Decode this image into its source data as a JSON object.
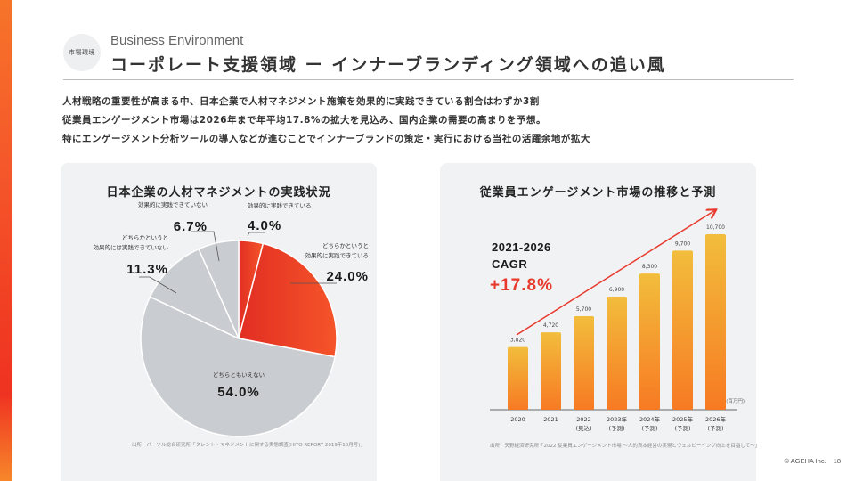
{
  "header": {
    "badge": "市場環境",
    "eyebrow": "Business Environment",
    "title": "コーポレート支援領域 ー インナーブランディング領域への追い風"
  },
  "intro_lines": [
    "人材戦略の重要性が高まる中、日本企業で人材マネジメント施策を効果的に実践できている割合はわずか3割",
    "従業員エンゲージメント市場は2026年まで年平均17.8%の拡大を見込み、国内企業の需要の高まりを予想。",
    "特にエンゲージメント分析ツールの導入などが進むことでインナーブランドの策定・実行における当社の活躍余地が拡大"
  ],
  "colors": {
    "accent_red": "#ee3a24",
    "accent_orange": "#f6742a",
    "bar_top": "#f2bd3c",
    "bar_bottom": "#f77a23",
    "pie_gray": "#c9ccd0",
    "cagr_red": "#e8392d"
  },
  "footer": {
    "copyright": "© AGEHA Inc.",
    "page_number": "18"
  },
  "chart_data": [
    {
      "type": "pie",
      "title": "日本企業の人材マネジメントの実践状況",
      "slices": [
        {
          "label": "効果的に実践できている",
          "value": 4.0,
          "display": "4.0%",
          "highlight": true
        },
        {
          "label": "どちらかというと 効果的に実践できている",
          "label_lines": [
            "どちらかというと",
            "効果的に実践できている"
          ],
          "value": 24.0,
          "display": "24.0%",
          "highlight": true
        },
        {
          "label": "どちらともいえない",
          "value": 54.0,
          "display": "54.0%",
          "highlight": false
        },
        {
          "label": "どちらかというと 効果的には実践できていない",
          "label_lines": [
            "どちらかというと",
            "効果的には実践できていない"
          ],
          "value": 11.3,
          "display": "11.3%",
          "highlight": false
        },
        {
          "label": "効果的に実践できていない",
          "value": 6.7,
          "display": "6.7%",
          "highlight": false
        }
      ],
      "start_angle": "12 o'clock, clockwise",
      "source": "出所：パーソル総合研究所「タレント・マネジメントに関する実態調査(HITO REPORT 2019年10月号)」"
    },
    {
      "type": "bar",
      "title": "従業員エンゲージメント市場の推移と予測",
      "categories": [
        "2020",
        "2021",
        "2022\n(見込)",
        "2023年\n(予測)",
        "2024年\n(予測)",
        "2025年\n(予測)",
        "2026年\n(予測)"
      ],
      "category_lines": [
        [
          "2020"
        ],
        [
          "2021"
        ],
        [
          "2022",
          "(見込)"
        ],
        [
          "2023年",
          "(予測)"
        ],
        [
          "2024年",
          "(予測)"
        ],
        [
          "2025年",
          "(予測)"
        ],
        [
          "2026年",
          "(予測)"
        ]
      ],
      "values": [
        3820,
        4720,
        5700,
        6900,
        8300,
        9700,
        10700
      ],
      "value_labels": [
        "3,820",
        "4,720",
        "5,700",
        "6,900",
        "8,300",
        "9,700",
        "10,700"
      ],
      "unit": "(百万円)",
      "ylim": [
        0,
        10700
      ],
      "grid": false,
      "annotation": {
        "lines": [
          "2021-2026",
          "CAGR"
        ],
        "value": "+17.8%"
      },
      "trend_arrow": true,
      "source": "出所：矢野経済研究所「2022 従業員エンゲージメント市場 ～人的資本経営の実現とウェルビーイング向上を目指して～」"
    }
  ]
}
